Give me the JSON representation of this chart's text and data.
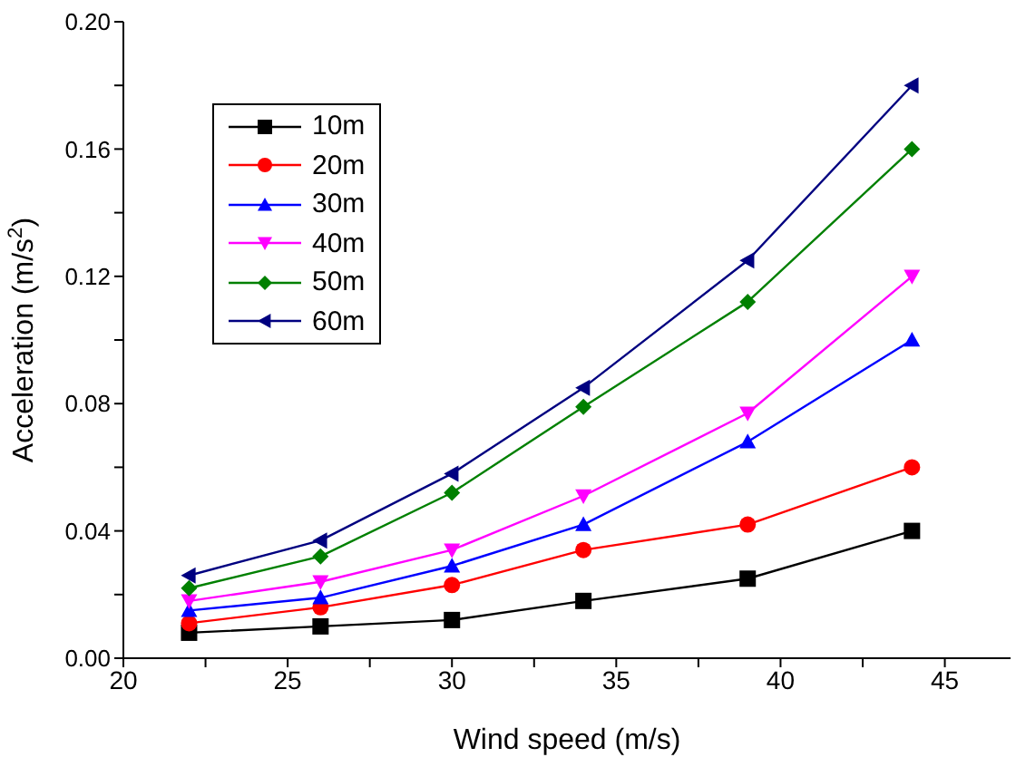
{
  "chart_data": {
    "type": "line",
    "xlabel": "Wind speed (m/s)",
    "ylabel": "Acceleration (m/s$^{2}$)",
    "x": [
      22,
      26,
      30,
      34,
      39,
      44
    ],
    "series": [
      {
        "name": "10m",
        "color": "#000000",
        "marker": "square",
        "values": [
          0.008,
          0.01,
          0.012,
          0.018,
          0.025,
          0.04
        ]
      },
      {
        "name": "20m",
        "color": "#ff0000",
        "marker": "circle",
        "values": [
          0.011,
          0.016,
          0.023,
          0.034,
          0.042,
          0.06
        ]
      },
      {
        "name": "30m",
        "color": "#0000ff",
        "marker": "triangle",
        "values": [
          0.015,
          0.019,
          0.029,
          0.042,
          0.068,
          0.1
        ]
      },
      {
        "name": "40m",
        "color": "#ff00ff",
        "marker": "triangle-down",
        "values": [
          0.018,
          0.024,
          0.034,
          0.051,
          0.077,
          0.12
        ]
      },
      {
        "name": "50m",
        "color": "#008000",
        "marker": "diamond",
        "values": [
          0.022,
          0.032,
          0.052,
          0.079,
          0.112,
          0.16
        ]
      },
      {
        "name": "60m",
        "color": "#000080",
        "marker": "triangle-left",
        "values": [
          0.026,
          0.037,
          0.058,
          0.085,
          0.125,
          0.18
        ]
      }
    ],
    "xlim": [
      20,
      47
    ],
    "xticks": [
      20,
      {
        "value": 22.5,
        "label": null
      },
      25,
      {
        "value": 27.5,
        "label": null
      },
      30,
      {
        "value": 32.5,
        "label": null
      },
      35,
      {
        "value": 37.5,
        "label": null
      },
      40,
      {
        "value": 42.5,
        "label": null
      },
      45
    ],
    "ylim": [
      0,
      0.2
    ],
    "yticks": [
      {
        "value": 0,
        "label": "0.00"
      },
      {
        "value": 0.02,
        "label": null
      },
      0.04,
      {
        "value": 0.06,
        "label": null
      },
      0.08,
      {
        "value": 0.1,
        "label": null
      },
      0.12,
      {
        "value": 0.14,
        "label": null
      },
      0.16,
      {
        "value": 0.18,
        "label": null
      },
      {
        "value": 0.2,
        "label": "0.20"
      }
    ],
    "grid": false,
    "legend": "top left",
    "line_style": "solid"
  }
}
